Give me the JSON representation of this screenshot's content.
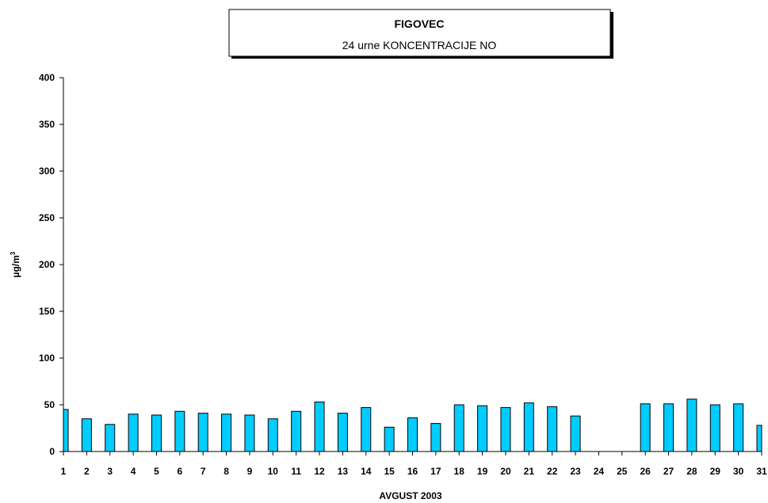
{
  "chart_data": {
    "type": "bar",
    "title": "FIGOVEC",
    "subtitle": "24 urne KONCENTRACIJE NO",
    "xlabel": "AVGUST 2003",
    "ylabel": "µg/m",
    "ylabel_superscript": "3",
    "ylim": [
      0,
      400
    ],
    "yticks": [
      0,
      50,
      100,
      150,
      200,
      250,
      300,
      350,
      400
    ],
    "categories": [
      "1",
      "2",
      "3",
      "4",
      "5",
      "6",
      "7",
      "8",
      "9",
      "10",
      "11",
      "12",
      "13",
      "14",
      "15",
      "16",
      "17",
      "18",
      "19",
      "20",
      "21",
      "22",
      "23",
      "24",
      "25",
      "26",
      "27",
      "28",
      "29",
      "30",
      "31"
    ],
    "values": [
      45,
      35,
      29,
      40,
      39,
      43,
      41,
      40,
      39,
      35,
      43,
      53,
      41,
      47,
      26,
      36,
      30,
      50,
      49,
      47,
      52,
      48,
      38,
      null,
      null,
      51,
      51,
      56,
      50,
      51,
      28
    ],
    "bar_color": "#00ccff",
    "grid": false,
    "legend": "none"
  }
}
